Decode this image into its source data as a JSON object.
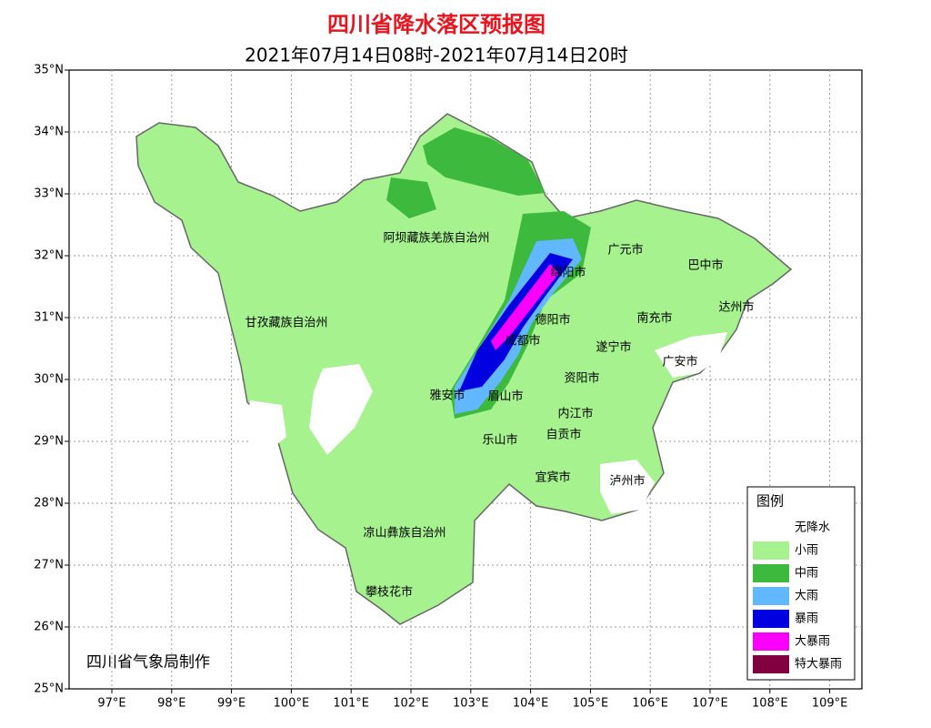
{
  "header": {
    "title": "四川省降水落区预报图",
    "subtitle": "2021年07月14日08时-2021年07月14日20时"
  },
  "axes": {
    "lat_labels": [
      "35°N",
      "34°N",
      "33°N",
      "32°N",
      "31°N",
      "30°N",
      "29°N",
      "28°N",
      "27°N",
      "26°N",
      "25°N"
    ],
    "lon_labels": [
      "97°E",
      "98°E",
      "99°E",
      "100°E",
      "101°E",
      "102°E",
      "103°E",
      "104°E",
      "105°E",
      "106°E",
      "107°E",
      "108°E",
      "109°E"
    ]
  },
  "places": [
    {
      "label": "阿坝藏族羌族自治州"
    },
    {
      "label": "甘孜藏族自治州"
    },
    {
      "label": "广元市"
    },
    {
      "label": "巴中市"
    },
    {
      "label": "绵阳市"
    },
    {
      "label": "达州市"
    },
    {
      "label": "德阳市"
    },
    {
      "label": "南充市"
    },
    {
      "label": "成都市"
    },
    {
      "label": "遂宁市"
    },
    {
      "label": "广安市"
    },
    {
      "label": "资阳市"
    },
    {
      "label": "雅安市"
    },
    {
      "label": "眉山市"
    },
    {
      "label": "内江市"
    },
    {
      "label": "自贡市"
    },
    {
      "label": "乐山市"
    },
    {
      "label": "宜宾市"
    },
    {
      "label": "泸州市"
    },
    {
      "label": "凉山彝族自治州"
    },
    {
      "label": "攀枝花市"
    }
  ],
  "legend": {
    "title": "图例",
    "items": [
      {
        "label": "无降水",
        "color": "#ffffff"
      },
      {
        "label": "小雨",
        "color": "#a6f28f"
      },
      {
        "label": "中雨",
        "color": "#3dba3d"
      },
      {
        "label": "大雨",
        "color": "#61b8ff"
      },
      {
        "label": "暴雨",
        "color": "#0000e1"
      },
      {
        "label": "大暴雨",
        "color": "#fa00fa"
      },
      {
        "label": "特大暴雨",
        "color": "#800040"
      }
    ]
  },
  "credit": "四川省气象局制作"
}
